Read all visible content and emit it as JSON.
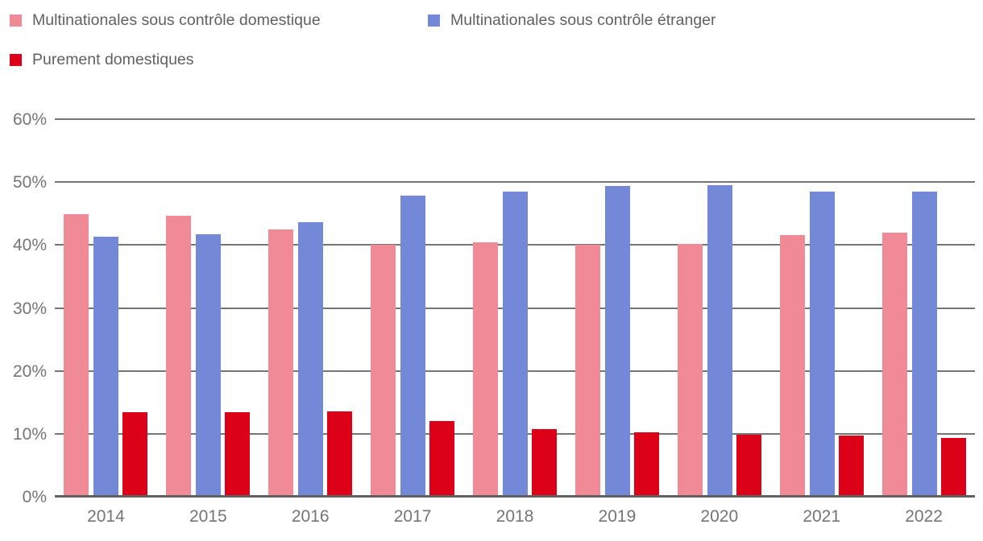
{
  "legend": {
    "items": [
      {
        "label": "Multinationales sous contrôle domestique",
        "color": "#f08a96"
      },
      {
        "label": "Multinationales sous contrôle étranger",
        "color": "#7389d8"
      },
      {
        "label": "Purement domestiques",
        "color": "#dc0018"
      }
    ]
  },
  "chart_data": {
    "type": "bar",
    "categories": [
      "2014",
      "2015",
      "2016",
      "2017",
      "2018",
      "2019",
      "2020",
      "2021",
      "2022"
    ],
    "series": [
      {
        "name": "Multinationales sous contrôle domestique",
        "color": "#f08a96",
        "values": [
          44.9,
          44.7,
          42.5,
          40.0,
          40.4,
          40.0,
          40.2,
          41.6,
          42.0
        ]
      },
      {
        "name": "Multinationales sous contrôle étranger",
        "color": "#7389d8",
        "values": [
          41.3,
          41.7,
          43.6,
          47.8,
          48.5,
          49.4,
          49.5,
          48.5,
          48.5
        ]
      },
      {
        "name": "Purement domestiques",
        "color": "#dc0018",
        "values": [
          13.4,
          13.4,
          13.6,
          12.0,
          10.8,
          10.2,
          9.8,
          9.7,
          9.3
        ]
      }
    ],
    "title": "",
    "xlabel": "",
    "ylabel": "",
    "ylim": [
      0,
      60
    ],
    "y_tick_labels": [
      "60%",
      "50%",
      "40%",
      "30%",
      "20%",
      "10%",
      "0%"
    ],
    "y_tick_values": [
      60,
      50,
      40,
      30,
      20,
      10,
      0
    ],
    "grid": true,
    "legend_position": "top-left",
    "axis_text_color": "#757575",
    "gridline_color": "#757575",
    "baseline_color": "#616161"
  }
}
